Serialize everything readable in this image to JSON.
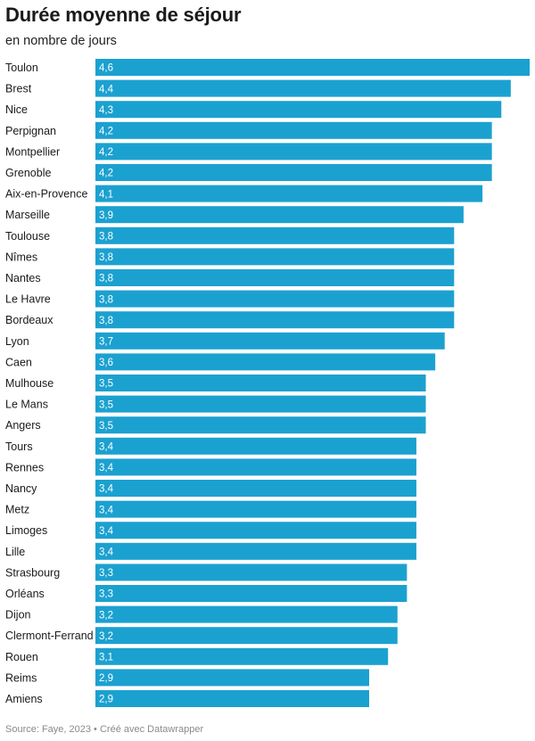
{
  "page": {
    "title": "Durée moyenne de séjour",
    "subtitle": "en nombre de jours",
    "footer": "Source: Faye, 2023 • Créé avec Datawrapper"
  },
  "colors": {
    "bar": "#1ba1d0",
    "value_text": "#ffffff",
    "label_text": "#1a1a1a",
    "footer_text": "#8a8a8a"
  },
  "chart_data": {
    "type": "bar",
    "orientation": "horizontal",
    "title": "Durée moyenne de séjour",
    "subtitle": "en nombre de jours",
    "xlabel": "",
    "ylabel": "",
    "xlim": [
      0,
      4.6
    ],
    "grid": false,
    "legend": "none",
    "categories": [
      "Toulon",
      "Brest",
      "Nice",
      "Perpignan",
      "Montpellier",
      "Grenoble",
      "Aix-en-Provence",
      "Marseille",
      "Toulouse",
      "Nîmes",
      "Nantes",
      "Le Havre",
      "Bordeaux",
      "Lyon",
      "Caen",
      "Mulhouse",
      "Le Mans",
      "Angers",
      "Tours",
      "Rennes",
      "Nancy",
      "Metz",
      "Limoges",
      "Lille",
      "Strasbourg",
      "Orléans",
      "Dijon",
      "Clermont-Ferrand",
      "Rouen",
      "Reims",
      "Amiens"
    ],
    "values": [
      4.6,
      4.4,
      4.3,
      4.2,
      4.2,
      4.2,
      4.1,
      3.9,
      3.8,
      3.8,
      3.8,
      3.8,
      3.8,
      3.7,
      3.6,
      3.5,
      3.5,
      3.5,
      3.4,
      3.4,
      3.4,
      3.4,
      3.4,
      3.4,
      3.3,
      3.3,
      3.2,
      3.2,
      3.1,
      2.9,
      2.9
    ],
    "value_labels": [
      "4,6",
      "4,4",
      "4,3",
      "4,2",
      "4,2",
      "4,2",
      "4,1",
      "3,9",
      "3,8",
      "3,8",
      "3,8",
      "3,8",
      "3,8",
      "3,7",
      "3,6",
      "3,5",
      "3,5",
      "3,5",
      "3,4",
      "3,4",
      "3,4",
      "3,4",
      "3,4",
      "3,4",
      "3,3",
      "3,3",
      "3,2",
      "3,2",
      "3,1",
      "2,9",
      "2,9"
    ]
  }
}
